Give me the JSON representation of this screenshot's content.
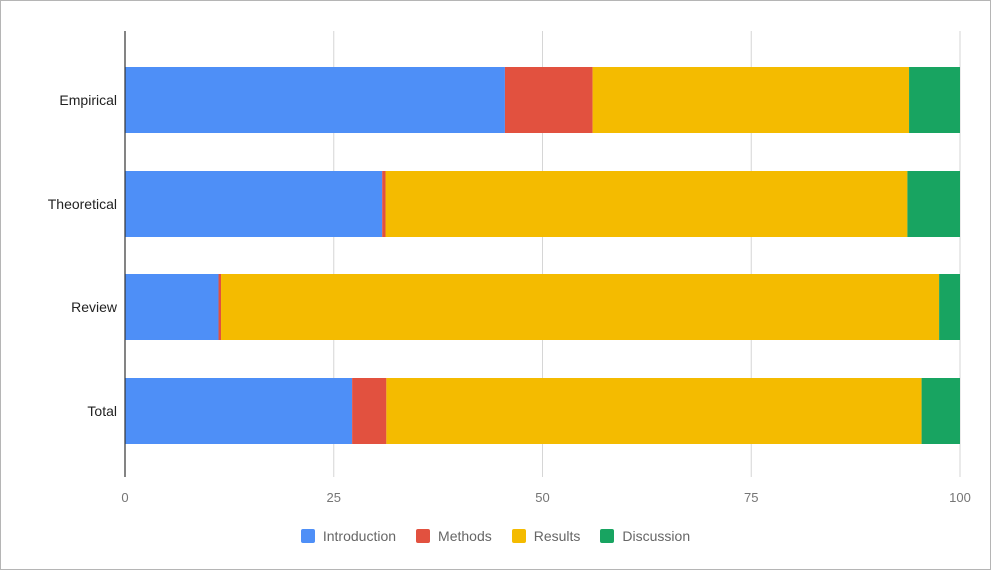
{
  "chart_data": {
    "type": "bar",
    "orientation": "horizontal",
    "stacked": true,
    "title": "",
    "xlabel": "",
    "ylabel": "",
    "categories": [
      "Empirical",
      "Theoretical",
      "Review",
      "Total"
    ],
    "xlim": [
      0,
      100
    ],
    "x_ticks": [
      "0",
      "25",
      "50",
      "75",
      "100"
    ],
    "x_tick_values": [
      0,
      25,
      50,
      75,
      100
    ],
    "grid": "vertical",
    "legend_position": "bottom",
    "series": [
      {
        "name": "Introduction",
        "color": "#4e8ff7",
        "values": [
          45.5,
          30.8,
          11.2,
          27.2
        ]
      },
      {
        "name": "Methods",
        "color": "#e2513f",
        "values": [
          10.5,
          0.4,
          0.3,
          4.1
        ]
      },
      {
        "name": "Results",
        "color": "#f4bb00",
        "values": [
          37.9,
          62.5,
          86.0,
          64.1
        ]
      },
      {
        "name": "Discussion",
        "color": "#18a461",
        "values": [
          6.1,
          6.3,
          2.5,
          4.6
        ]
      }
    ]
  }
}
